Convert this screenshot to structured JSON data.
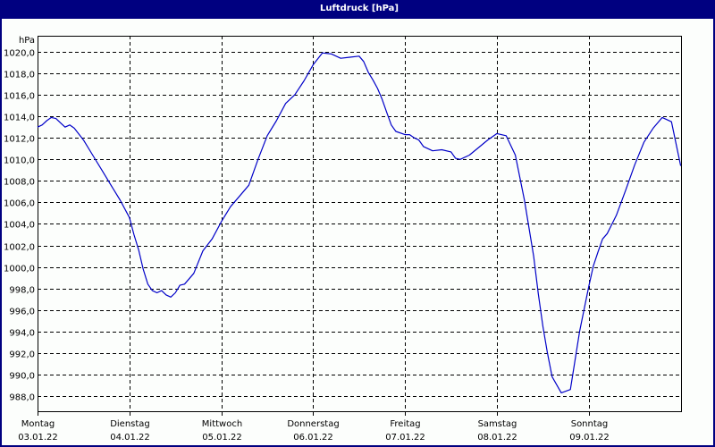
{
  "window": {
    "title": "Luftdruck [hPa]"
  },
  "chart_data": {
    "type": "line",
    "title": "Luftdruck [hPa]",
    "xlabel": "",
    "ylabel": "hPa",
    "ylim": [
      986.5,
      1021.5
    ],
    "grid": true,
    "line_color": "#0000c8",
    "y_ticks": [
      "1020,0",
      "1018,0",
      "1016,0",
      "1014,0",
      "1012,0",
      "1010,0",
      "1008,0",
      "1006,0",
      "1004,0",
      "1002,0",
      "1000,0",
      "998,0",
      "996,0",
      "994,0",
      "992,0",
      "990,0",
      "988,0"
    ],
    "x_ticks": [
      {
        "day": "Montag",
        "date": "03.01.22"
      },
      {
        "day": "Dienstag",
        "date": "04.01.22"
      },
      {
        "day": "Mittwoch",
        "date": "05.01.22"
      },
      {
        "day": "Donnerstag",
        "date": "06.01.22"
      },
      {
        "day": "Freitag",
        "date": "07.01.22"
      },
      {
        "day": "Samstag",
        "date": "08.01.22"
      },
      {
        "day": "Sonntag",
        "date": "09.01.22"
      }
    ],
    "series": [
      {
        "name": "Luftdruck",
        "x_days": [
          0.0,
          0.05,
          0.1,
          0.15,
          0.2,
          0.25,
          0.3,
          0.35,
          0.4,
          0.5,
          0.6,
          0.7,
          0.8,
          0.9,
          1.0,
          1.05,
          1.1,
          1.15,
          1.2,
          1.25,
          1.3,
          1.35,
          1.4,
          1.45,
          1.5,
          1.55,
          1.6,
          1.7,
          1.8,
          1.9,
          2.0,
          2.1,
          2.2,
          2.3,
          2.4,
          2.5,
          2.6,
          2.7,
          2.8,
          2.9,
          3.0,
          3.1,
          3.2,
          3.3,
          3.4,
          3.5,
          3.55,
          3.6,
          3.65,
          3.7,
          3.75,
          3.8,
          3.85,
          3.9,
          4.0,
          4.05,
          4.1,
          4.15,
          4.2,
          4.3,
          4.4,
          4.5,
          4.55,
          4.6,
          4.7,
          4.8,
          4.9,
          5.0,
          5.1,
          5.2,
          5.3,
          5.4,
          5.45,
          5.5,
          5.55,
          5.6,
          5.7,
          5.8,
          5.9,
          6.0,
          6.05,
          6.1,
          6.15,
          6.2,
          6.3,
          6.4,
          6.5,
          6.6,
          6.7,
          6.8,
          6.9,
          7.0
        ],
        "values": [
          1013.0,
          1013.2,
          1013.6,
          1013.9,
          1013.8,
          1013.4,
          1013.0,
          1013.2,
          1012.9,
          1011.8,
          1010.4,
          1009.0,
          1007.6,
          1006.2,
          1004.6,
          1003.0,
          1001.6,
          999.8,
          998.4,
          997.8,
          997.6,
          997.8,
          997.4,
          997.2,
          997.6,
          998.3,
          998.4,
          999.4,
          1001.5,
          1002.6,
          1004.2,
          1005.6,
          1006.6,
          1007.6,
          1010.0,
          1012.2,
          1013.6,
          1015.2,
          1016.0,
          1017.3,
          1018.8,
          1019.9,
          1019.8,
          1019.4,
          1019.5,
          1019.6,
          1019.1,
          1018.1,
          1017.4,
          1016.6,
          1015.6,
          1014.4,
          1013.2,
          1012.6,
          1012.3,
          1012.3,
          1012.0,
          1011.8,
          1011.2,
          1010.8,
          1010.9,
          1010.7,
          1010.1,
          1010.0,
          1010.4,
          1011.1,
          1011.8,
          1012.4,
          1012.2,
          1010.4,
          1006.2,
          1001.0,
          997.5,
          994.5,
          992.0,
          989.8,
          988.3,
          988.6,
          994.0,
          998.2,
          1000.1,
          1001.4,
          1002.6,
          1003.1,
          1004.8,
          1007.1,
          1009.5,
          1011.6,
          1012.9,
          1013.9,
          1013.5,
          1009.4
        ]
      }
    ]
  }
}
